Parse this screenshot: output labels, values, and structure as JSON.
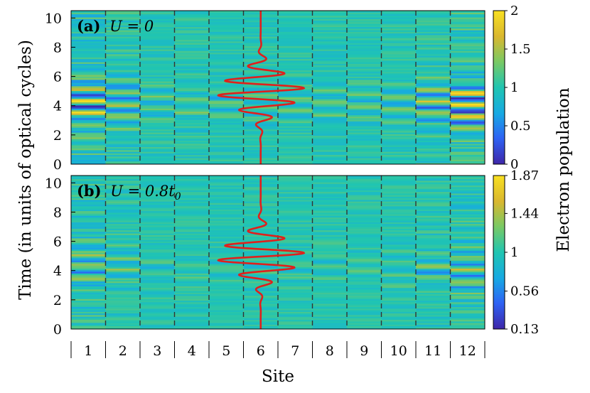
{
  "chart_data": [
    {
      "type": "heatmap",
      "panel": "a",
      "label": "(a)",
      "label_math": "U = 0",
      "x_categories": [
        "1",
        "2",
        "3",
        "4",
        "5",
        "6",
        "7",
        "8",
        "9",
        "10",
        "11",
        "12"
      ],
      "yticks": [
        "0",
        "2",
        "4",
        "6",
        "8",
        "10"
      ],
      "ylim": [
        0,
        10.5
      ],
      "colorbar": {
        "label": "Electron population",
        "ticks": [
          "0",
          "0.5",
          "1",
          "1.5",
          "2"
        ],
        "tick_values": [
          0,
          0.5,
          1,
          1.5,
          2
        ],
        "range": [
          0,
          2
        ]
      },
      "site_boundary_lines": "dashed",
      "overlay_curve": "laser pulse field (red) centered on site 6",
      "colormap": [
        "#3e26a8",
        "#2e63f4",
        "#17a9e3",
        "#20c5b1",
        "#7bc963",
        "#d9b72f",
        "#f9e021"
      ]
    },
    {
      "type": "heatmap",
      "panel": "b",
      "label": "(b)",
      "label_math": "U = 0.8t",
      "label_subscript": "0",
      "x_categories": [
        "1",
        "2",
        "3",
        "4",
        "5",
        "6",
        "7",
        "8",
        "9",
        "10",
        "11",
        "12"
      ],
      "yticks": [
        "0",
        "2",
        "4",
        "6",
        "8",
        "10"
      ],
      "ylim": [
        0,
        10.5
      ],
      "colorbar": {
        "label": "Electron population",
        "ticks": [
          "0.13",
          "0.56",
          "1",
          "1.44",
          "1.87"
        ],
        "tick_values": [
          0.13,
          0.56,
          1,
          1.44,
          1.87
        ],
        "range": [
          0.13,
          1.87
        ]
      },
      "site_boundary_lines": "dashed",
      "overlay_curve": "laser pulse field (red) centered on site 6",
      "colormap": [
        "#3e26a8",
        "#2e63f4",
        "#17a9e3",
        "#20c5b1",
        "#7bc963",
        "#d9b72f",
        "#f9e021"
      ]
    }
  ],
  "axes": {
    "ylabel": "Time (in units of optical cycles)",
    "xlabel": "Site"
  }
}
